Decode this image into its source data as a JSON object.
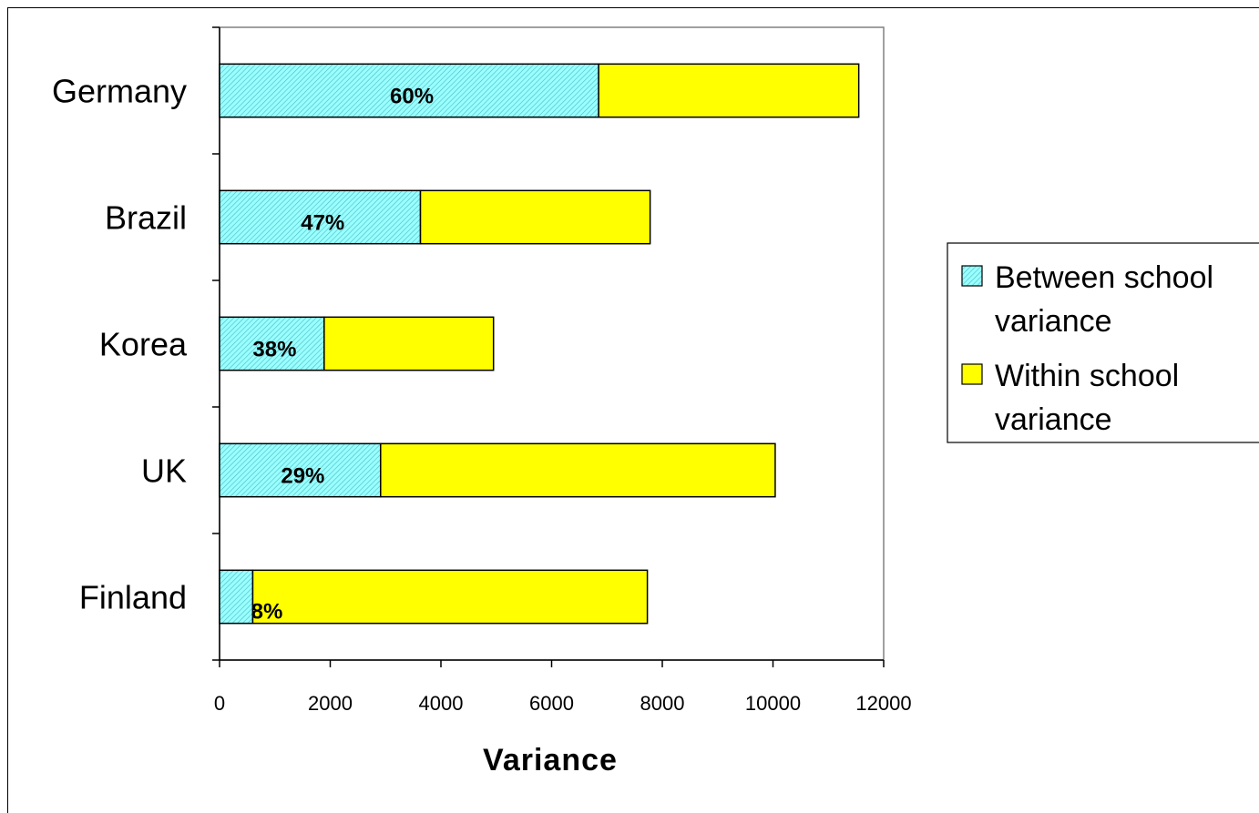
{
  "chart_data": {
    "type": "bar",
    "orientation": "horizontal",
    "stacked": true,
    "categories": [
      "Germany",
      "Brazil",
      "Korea",
      "UK",
      "Finland"
    ],
    "series": [
      {
        "name": "Between school variance",
        "legend_lines": [
          "Between school",
          "variance"
        ],
        "values": [
          6850,
          3630,
          1890,
          2910,
          600
        ],
        "color": "#99FFFF",
        "pattern": "hatched"
      },
      {
        "name": "Within school variance",
        "legend_lines": [
          "Within school",
          "variance"
        ],
        "values": [
          4700,
          4150,
          3060,
          7130,
          7130
        ],
        "color": "#FFFF00"
      }
    ],
    "data_labels": [
      "60%",
      "47%",
      "38%",
      "29%",
      "8%"
    ],
    "xlabel": "Variance",
    "xlim": [
      0,
      12000
    ],
    "xticks": [
      "0",
      "2000",
      "4000",
      "6000",
      "8000",
      "10000",
      "12000"
    ],
    "grid": false,
    "legend_position": "right"
  }
}
